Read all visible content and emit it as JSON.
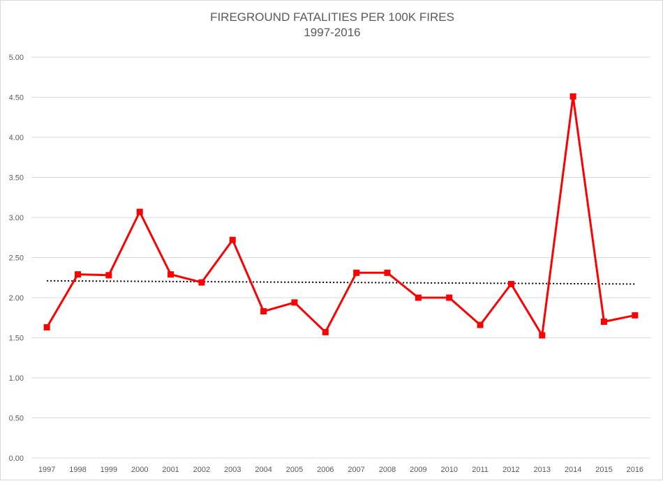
{
  "chart": {
    "title_line1": "FIREGROUND FATALITIES PER 100K FIRES",
    "title_line2": "1997-2016"
  },
  "colors": {
    "series": "#ff0000",
    "trendline": "#000000",
    "gridline": "#d9d9d9",
    "axis_text": "#595959",
    "background": "#ffffff"
  },
  "chart_data": {
    "type": "line",
    "title": "FIREGROUND FATALITIES PER 100K FIRES 1997-2016",
    "xlabel": "",
    "ylabel": "",
    "categories": [
      "1997",
      "1998",
      "1999",
      "2000",
      "2001",
      "2002",
      "2003",
      "2004",
      "2005",
      "2006",
      "2007",
      "2008",
      "2009",
      "2010",
      "2011",
      "2012",
      "2013",
      "2014",
      "2015",
      "2016"
    ],
    "series": [
      {
        "name": "Fireground fatalities per 100K fires",
        "marker": "square",
        "color": "#ff0000",
        "values": [
          1.63,
          2.29,
          2.28,
          3.07,
          2.29,
          2.19,
          2.72,
          1.83,
          1.94,
          1.57,
          2.31,
          2.31,
          2.0,
          2.0,
          1.66,
          2.17,
          1.53,
          4.51,
          1.7,
          1.78
        ]
      },
      {
        "name": "Linear trend",
        "style": "dotted",
        "color": "#000000",
        "values": [
          2.21,
          2.17
        ]
      }
    ],
    "ylim": [
      0,
      5
    ],
    "yticks": [
      "0.00",
      "0.50",
      "1.00",
      "1.50",
      "2.00",
      "2.50",
      "3.00",
      "3.50",
      "4.00",
      "4.50",
      "5.00"
    ],
    "grid": true,
    "legend": "none"
  }
}
